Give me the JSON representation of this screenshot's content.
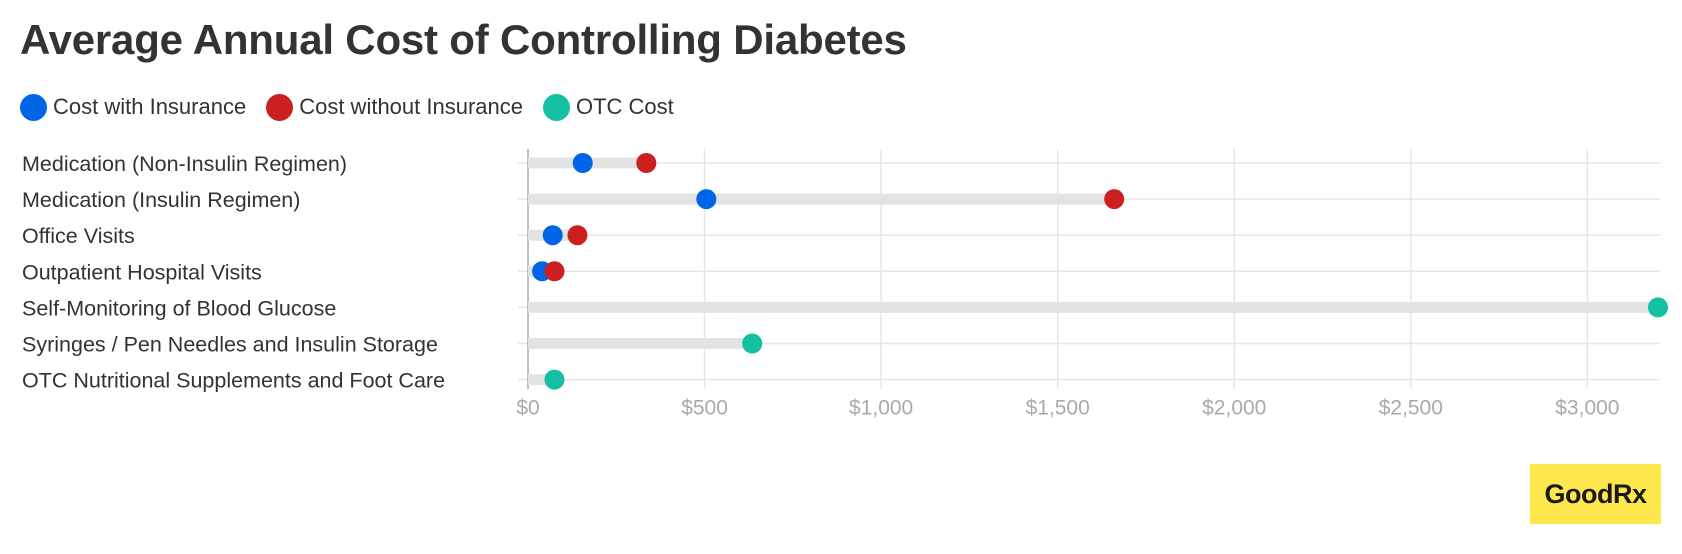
{
  "chart_data": {
    "type": "dot",
    "title": "Average Annual Cost of Controlling Diabetes",
    "categories": [
      "Medication (Non-Insulin Regimen)",
      "Medication (Insulin Regimen)",
      "Office Visits",
      "Outpatient Hospital Visits",
      "Self-Monitoring of Blood Glucose",
      "Syringes / Pen Needles and Insulin Storage",
      "OTC Nutritional Supplements and Foot Care"
    ],
    "series": [
      {
        "name": "Cost with Insurance",
        "color": "#0065e6",
        "values": [
          155,
          505,
          70,
          40,
          null,
          null,
          null
        ]
      },
      {
        "name": "Cost without Insurance",
        "color": "#cc1f1f",
        "values": [
          335,
          1660,
          140,
          75,
          null,
          null,
          null
        ]
      },
      {
        "name": "OTC Cost",
        "color": "#14bfa2",
        "values": [
          null,
          null,
          null,
          null,
          3200,
          635,
          75
        ]
      }
    ],
    "x_ticks": [
      0,
      500,
      1000,
      1500,
      2000,
      2500,
      3000
    ],
    "x_tick_labels": [
      "$0",
      "$500",
      "$1,000",
      "$1,500",
      "$2,000",
      "$2,500",
      "$3,000"
    ],
    "xlim": [
      0,
      3200
    ],
    "grid": true,
    "legend_position": "top-left"
  },
  "brand": {
    "logo_text": "GoodRx",
    "logo_bg": "#fde74c"
  }
}
